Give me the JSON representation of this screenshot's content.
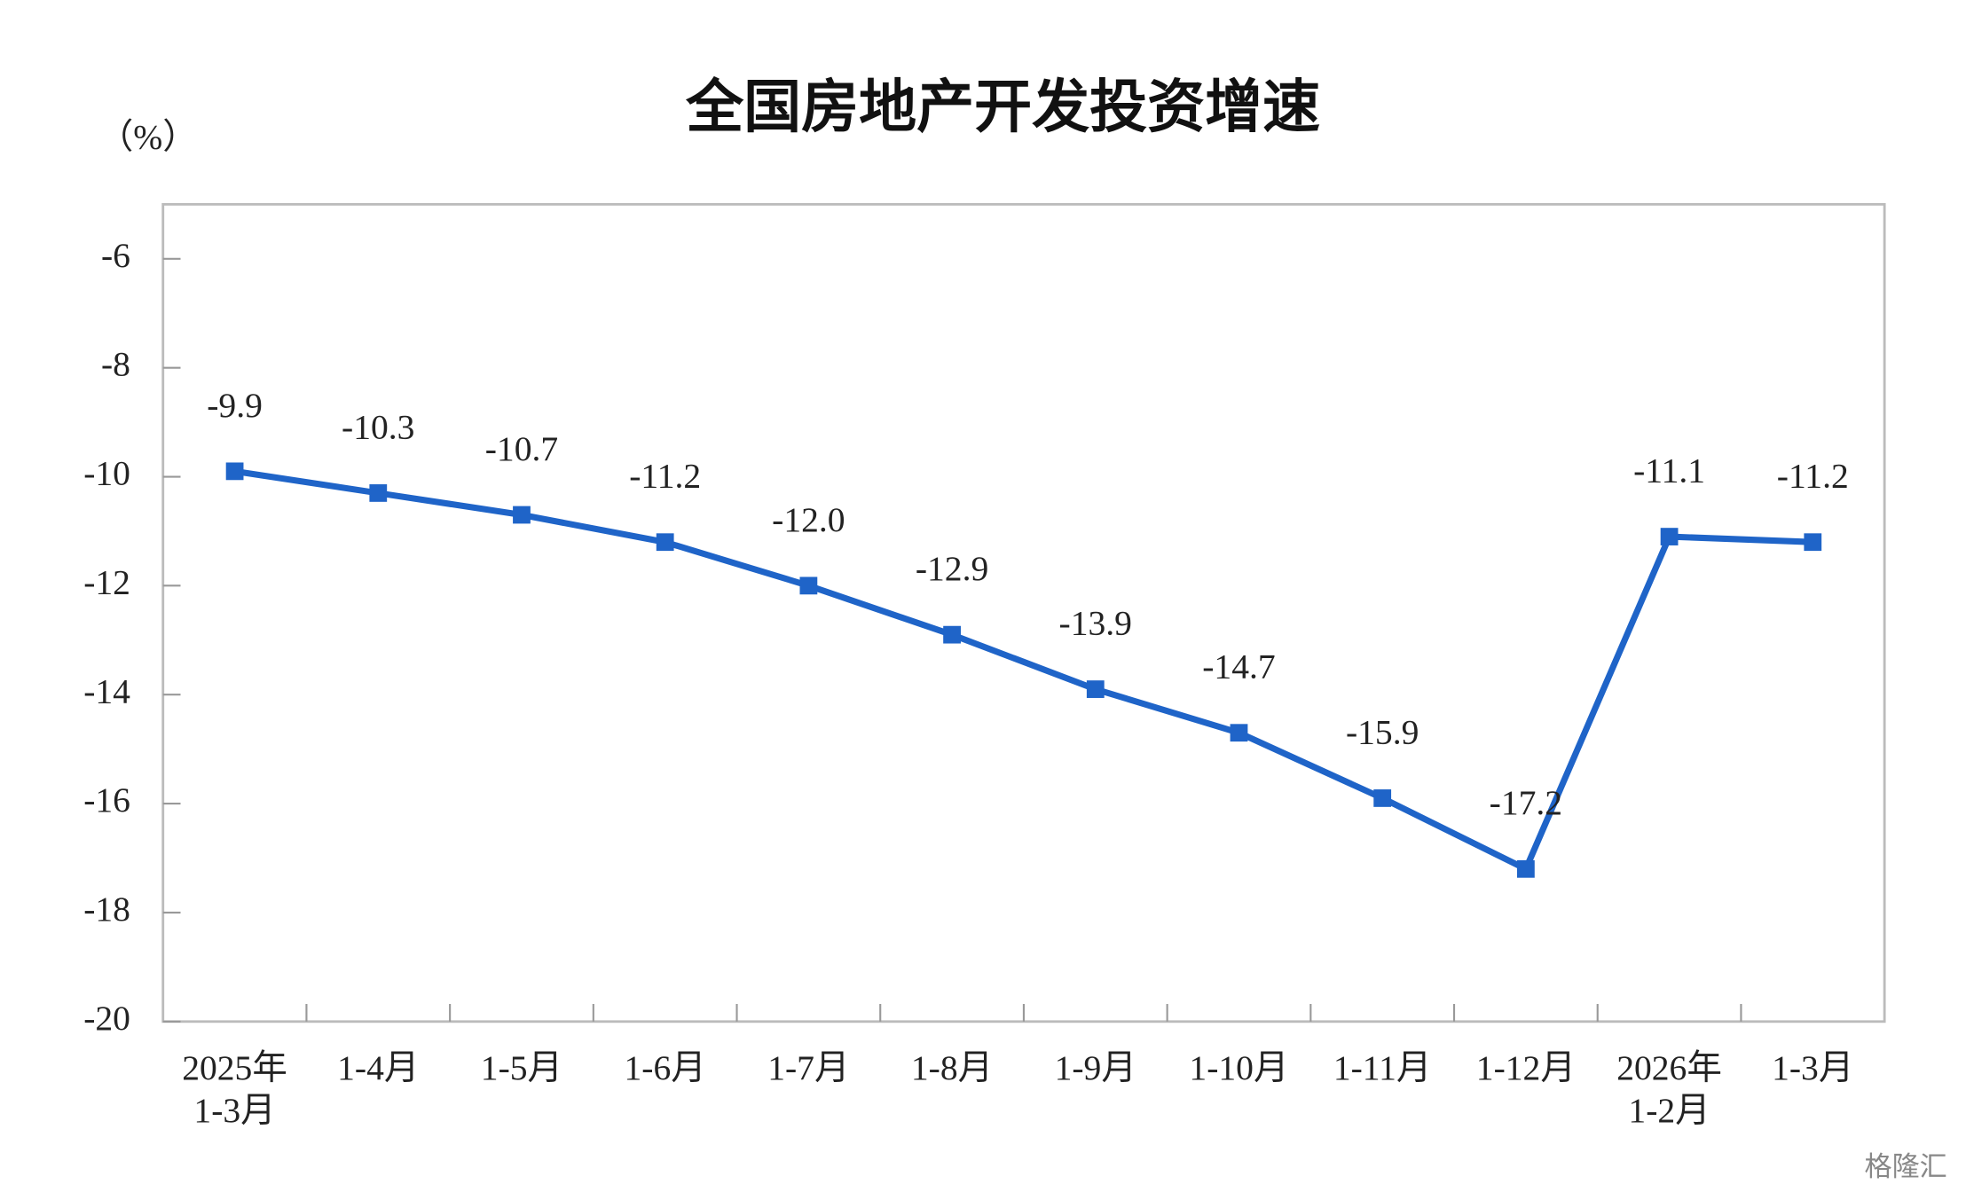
{
  "chart_data": {
    "type": "line",
    "title": "全国房地产开发投资增速",
    "y_unit": "（%）",
    "categories": [
      "2025年\n1-3月",
      "1-4月",
      "1-5月",
      "1-6月",
      "1-7月",
      "1-8月",
      "1-9月",
      "1-10月",
      "1-11月",
      "1-12月",
      "2026年\n1-2月",
      "1-3月"
    ],
    "series": [
      {
        "color": "#1f64c8",
        "values": [
          -9.9,
          -10.3,
          -10.7,
          -11.2,
          -12,
          -12.9,
          -13.9,
          -14.7,
          -15.9,
          -17.2,
          -11.1,
          -11.2
        ],
        "value_labels": [
          "-9.9",
          "-10.3",
          "-10.7",
          "-11.2",
          "-12.0",
          "-12.9",
          "-13.9",
          "-14.7",
          "-15.9",
          "-17.2",
          "-11.1",
          "-11.2"
        ]
      }
    ],
    "ylim": [
      -20,
      -5
    ],
    "yticks": [
      -6,
      -8,
      -10,
      -12,
      -14,
      -16,
      -18,
      -20
    ],
    "grid": false,
    "watermark": "格隆汇"
  }
}
